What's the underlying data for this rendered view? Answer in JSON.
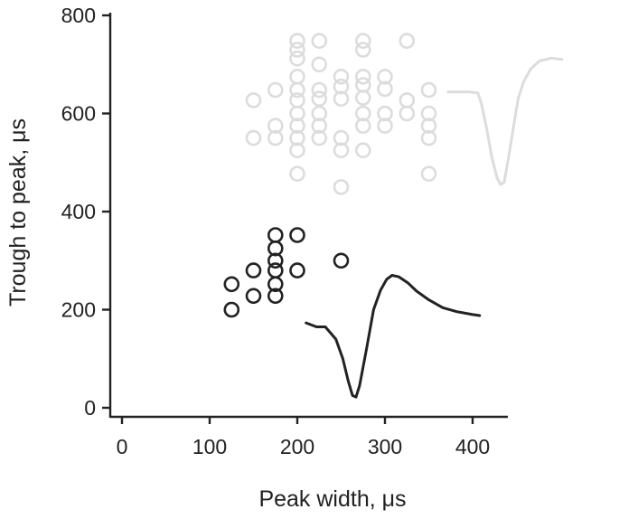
{
  "chart_data": {
    "type": "scatter",
    "xlabel": "Peak width, μs",
    "ylabel": "Trough to peak, μs",
    "xlim": [
      0,
      400
    ],
    "ylim": [
      0,
      800
    ],
    "x_ticks": [
      "0",
      "100",
      "200",
      "300",
      "400"
    ],
    "y_ticks": [
      "0",
      "200",
      "400",
      "600",
      "800"
    ],
    "grid": false,
    "legend": "none",
    "colors": {
      "light_series": "#dcdcdc",
      "dark_series": "#222222",
      "axis": "#222222"
    },
    "series": [
      {
        "style": "light",
        "points": [
          [
            200,
            748
          ],
          [
            225,
            748
          ],
          [
            275,
            748
          ],
          [
            325,
            748
          ],
          [
            200,
            730
          ],
          [
            275,
            730
          ],
          [
            200,
            712
          ],
          [
            225,
            700
          ],
          [
            200,
            675
          ],
          [
            250,
            675
          ],
          [
            275,
            675
          ],
          [
            300,
            675
          ],
          [
            175,
            648
          ],
          [
            200,
            648
          ],
          [
            225,
            648
          ],
          [
            250,
            655
          ],
          [
            275,
            658
          ],
          [
            300,
            650
          ],
          [
            350,
            648
          ],
          [
            150,
            627
          ],
          [
            200,
            627
          ],
          [
            225,
            630
          ],
          [
            250,
            630
          ],
          [
            275,
            632
          ],
          [
            325,
            627
          ],
          [
            200,
            600
          ],
          [
            225,
            600
          ],
          [
            275,
            600
          ],
          [
            300,
            600
          ],
          [
            325,
            600
          ],
          [
            350,
            600
          ],
          [
            175,
            575
          ],
          [
            200,
            575
          ],
          [
            225,
            575
          ],
          [
            275,
            575
          ],
          [
            300,
            575
          ],
          [
            350,
            575
          ],
          [
            150,
            550
          ],
          [
            175,
            550
          ],
          [
            200,
            550
          ],
          [
            225,
            550
          ],
          [
            250,
            550
          ],
          [
            350,
            550
          ],
          [
            200,
            525
          ],
          [
            250,
            525
          ],
          [
            275,
            525
          ],
          [
            200,
            477
          ],
          [
            350,
            477
          ],
          [
            250,
            450
          ]
        ]
      },
      {
        "style": "dark",
        "points": [
          [
            175,
            352
          ],
          [
            200,
            352
          ],
          [
            175,
            325
          ],
          [
            175,
            300
          ],
          [
            250,
            300
          ],
          [
            150,
            280
          ],
          [
            175,
            280
          ],
          [
            200,
            280
          ],
          [
            125,
            252
          ],
          [
            175,
            252
          ],
          [
            150,
            228
          ],
          [
            175,
            228
          ],
          [
            125,
            200
          ]
        ]
      }
    ],
    "waveforms": [
      {
        "style": "light",
        "points": [
          [
            372,
            644
          ],
          [
            395,
            644
          ],
          [
            406,
            642
          ],
          [
            410,
            620
          ],
          [
            416,
            570
          ],
          [
            422,
            510
          ],
          [
            428,
            468
          ],
          [
            432,
            455
          ],
          [
            436,
            460
          ],
          [
            442,
            520
          ],
          [
            448,
            588
          ],
          [
            452,
            630
          ],
          [
            458,
            664
          ],
          [
            466,
            690
          ],
          [
            476,
            707
          ],
          [
            490,
            713
          ],
          [
            502,
            710
          ]
        ]
      },
      {
        "style": "dark",
        "points": [
          [
            210,
            173
          ],
          [
            222,
            165
          ],
          [
            232,
            165
          ],
          [
            244,
            140
          ],
          [
            252,
            100
          ],
          [
            258,
            55
          ],
          [
            263,
            25
          ],
          [
            267,
            22
          ],
          [
            271,
            45
          ],
          [
            279,
            120
          ],
          [
            287,
            200
          ],
          [
            295,
            240
          ],
          [
            302,
            262
          ],
          [
            308,
            270
          ],
          [
            316,
            267
          ],
          [
            326,
            255
          ],
          [
            336,
            238
          ],
          [
            350,
            220
          ],
          [
            366,
            204
          ],
          [
            382,
            196
          ],
          [
            400,
            190
          ],
          [
            408,
            188
          ]
        ]
      }
    ]
  }
}
